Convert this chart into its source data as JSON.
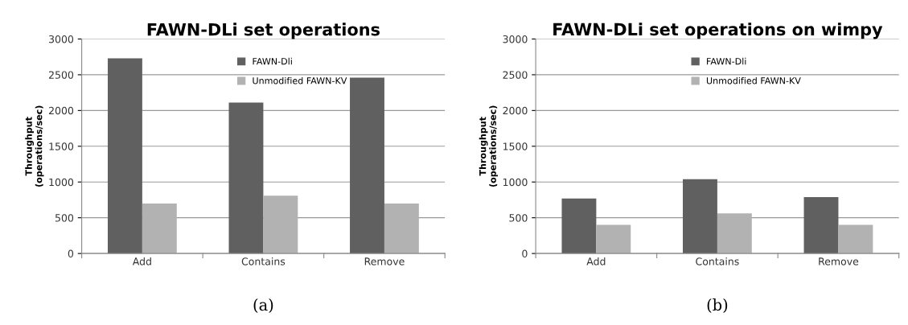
{
  "chart_data": [
    {
      "type": "bar",
      "title": "FAWN-DLi set operations",
      "ylabel": "Throughput\n(operations/sec)",
      "categories": [
        "Add",
        "Contains",
        "Remove"
      ],
      "series": [
        {
          "name": "FAWN-Dli",
          "color": "#606060",
          "values": [
            2730,
            2110,
            2460
          ]
        },
        {
          "name": "Unmodified FAWN-KV",
          "color": "#b2b2b2",
          "values": [
            700,
            810,
            700
          ]
        }
      ],
      "ylim": [
        0,
        3000
      ],
      "yticks": [
        0,
        500,
        1000,
        1500,
        2000,
        2500,
        3000
      ],
      "grid": "y",
      "legend": "top",
      "annotations": [
        "(a)"
      ]
    },
    {
      "type": "bar",
      "title": "FAWN-DLi set operations on wimpy",
      "ylabel": "Throughput\n(operations/sec)",
      "categories": [
        "Add",
        "Contains",
        "Remove"
      ],
      "series": [
        {
          "name": "FAWN-Dli",
          "color": "#606060",
          "values": [
            770,
            1040,
            790
          ]
        },
        {
          "name": "Unmodified FAWN-KV",
          "color": "#b2b2b2",
          "values": [
            400,
            560,
            400
          ]
        }
      ],
      "ylim": [
        0,
        3000
      ],
      "yticks": [
        0,
        500,
        1000,
        1500,
        2000,
        2500,
        3000
      ],
      "grid": "y",
      "legend": "top",
      "annotations": [
        "(b)"
      ]
    }
  ]
}
